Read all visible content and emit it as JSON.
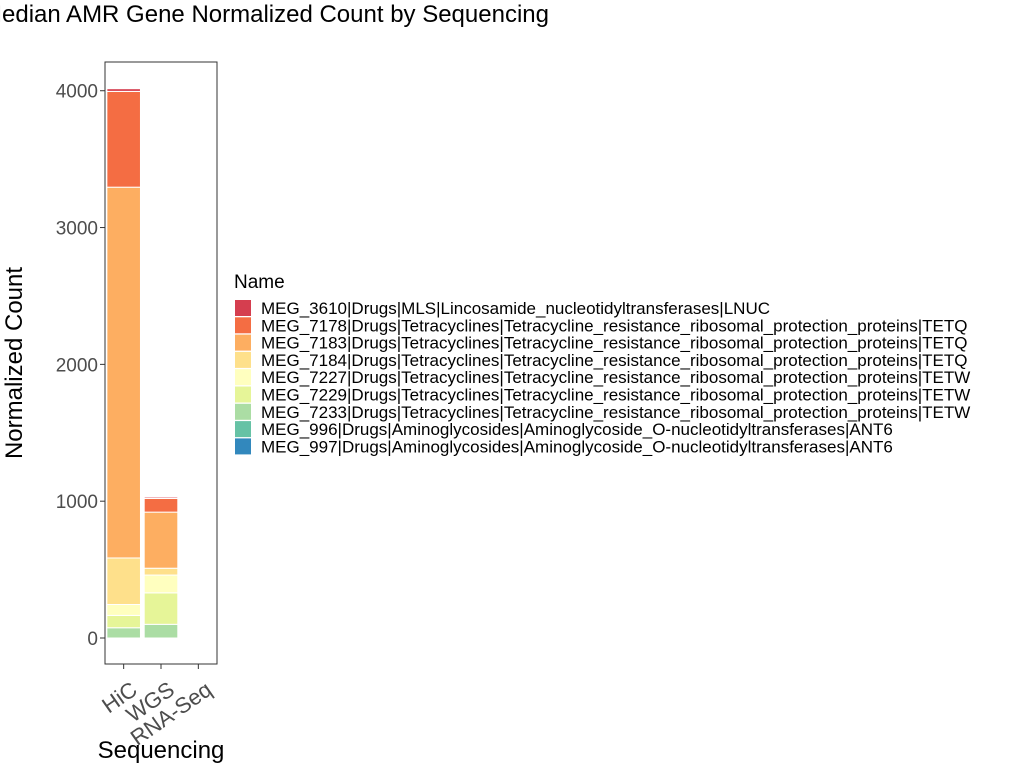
{
  "chart_data": {
    "type": "bar",
    "stacked": true,
    "title": "Median AMR Gene Normalized Count by Sequencing",
    "xlabel": "Sequencing",
    "ylabel": "Normalized Count",
    "ylim": [
      -190,
      4210
    ],
    "yticks": [
      0,
      1000,
      2000,
      3000,
      4000
    ],
    "categories": [
      "HiC",
      "WGS",
      "RNA-Seq"
    ],
    "legend": {
      "title": "Name",
      "position": "right"
    },
    "series": [
      {
        "name": "MEG_3610|Drugs|MLS|Lincosamide_nucleotidyltransferases|LNUC",
        "color": "#d53e4f",
        "values": [
          20,
          10,
          0
        ]
      },
      {
        "name": "MEG_7178|Drugs|Tetracyclines|Tetracycline_resistance_ribosomal_protection_proteins|TETQ",
        "color": "#f46d43",
        "values": [
          700,
          100,
          0
        ]
      },
      {
        "name": "MEG_7183|Drugs|Tetracyclines|Tetracycline_resistance_ribosomal_protection_proteins|TETQ",
        "color": "#fdae61",
        "values": [
          2710,
          410,
          0
        ]
      },
      {
        "name": "MEG_7184|Drugs|Tetracyclines|Tetracycline_resistance_ribosomal_protection_proteins|TETQ",
        "color": "#fee08b",
        "values": [
          340,
          50,
          0
        ]
      },
      {
        "name": "MEG_7227|Drugs|Tetracyclines|Tetracycline_resistance_ribosomal_protection_proteins|TETW",
        "color": "#ffffbf",
        "values": [
          80,
          130,
          0
        ]
      },
      {
        "name": "MEG_7229|Drugs|Tetracyclines|Tetracycline_resistance_ribosomal_protection_proteins|TETW",
        "color": "#e6f598",
        "values": [
          90,
          230,
          0
        ]
      },
      {
        "name": "MEG_7233|Drugs|Tetracyclines|Tetracycline_resistance_ribosomal_protection_proteins|TETW",
        "color": "#abdda4",
        "values": [
          75,
          100,
          0
        ]
      },
      {
        "name": "MEG_996|Drugs|Aminoglycosides|Aminoglycoside_O-nucleotidyltransferases|ANT6",
        "color": "#66c2a5",
        "values": [
          0,
          0,
          0
        ]
      },
      {
        "name": "MEG_997|Drugs|Aminoglycosides|Aminoglycoside_O-nucleotidyltransferases|ANT6",
        "color": "#3288bd",
        "values": [
          0,
          0,
          0
        ]
      }
    ]
  }
}
